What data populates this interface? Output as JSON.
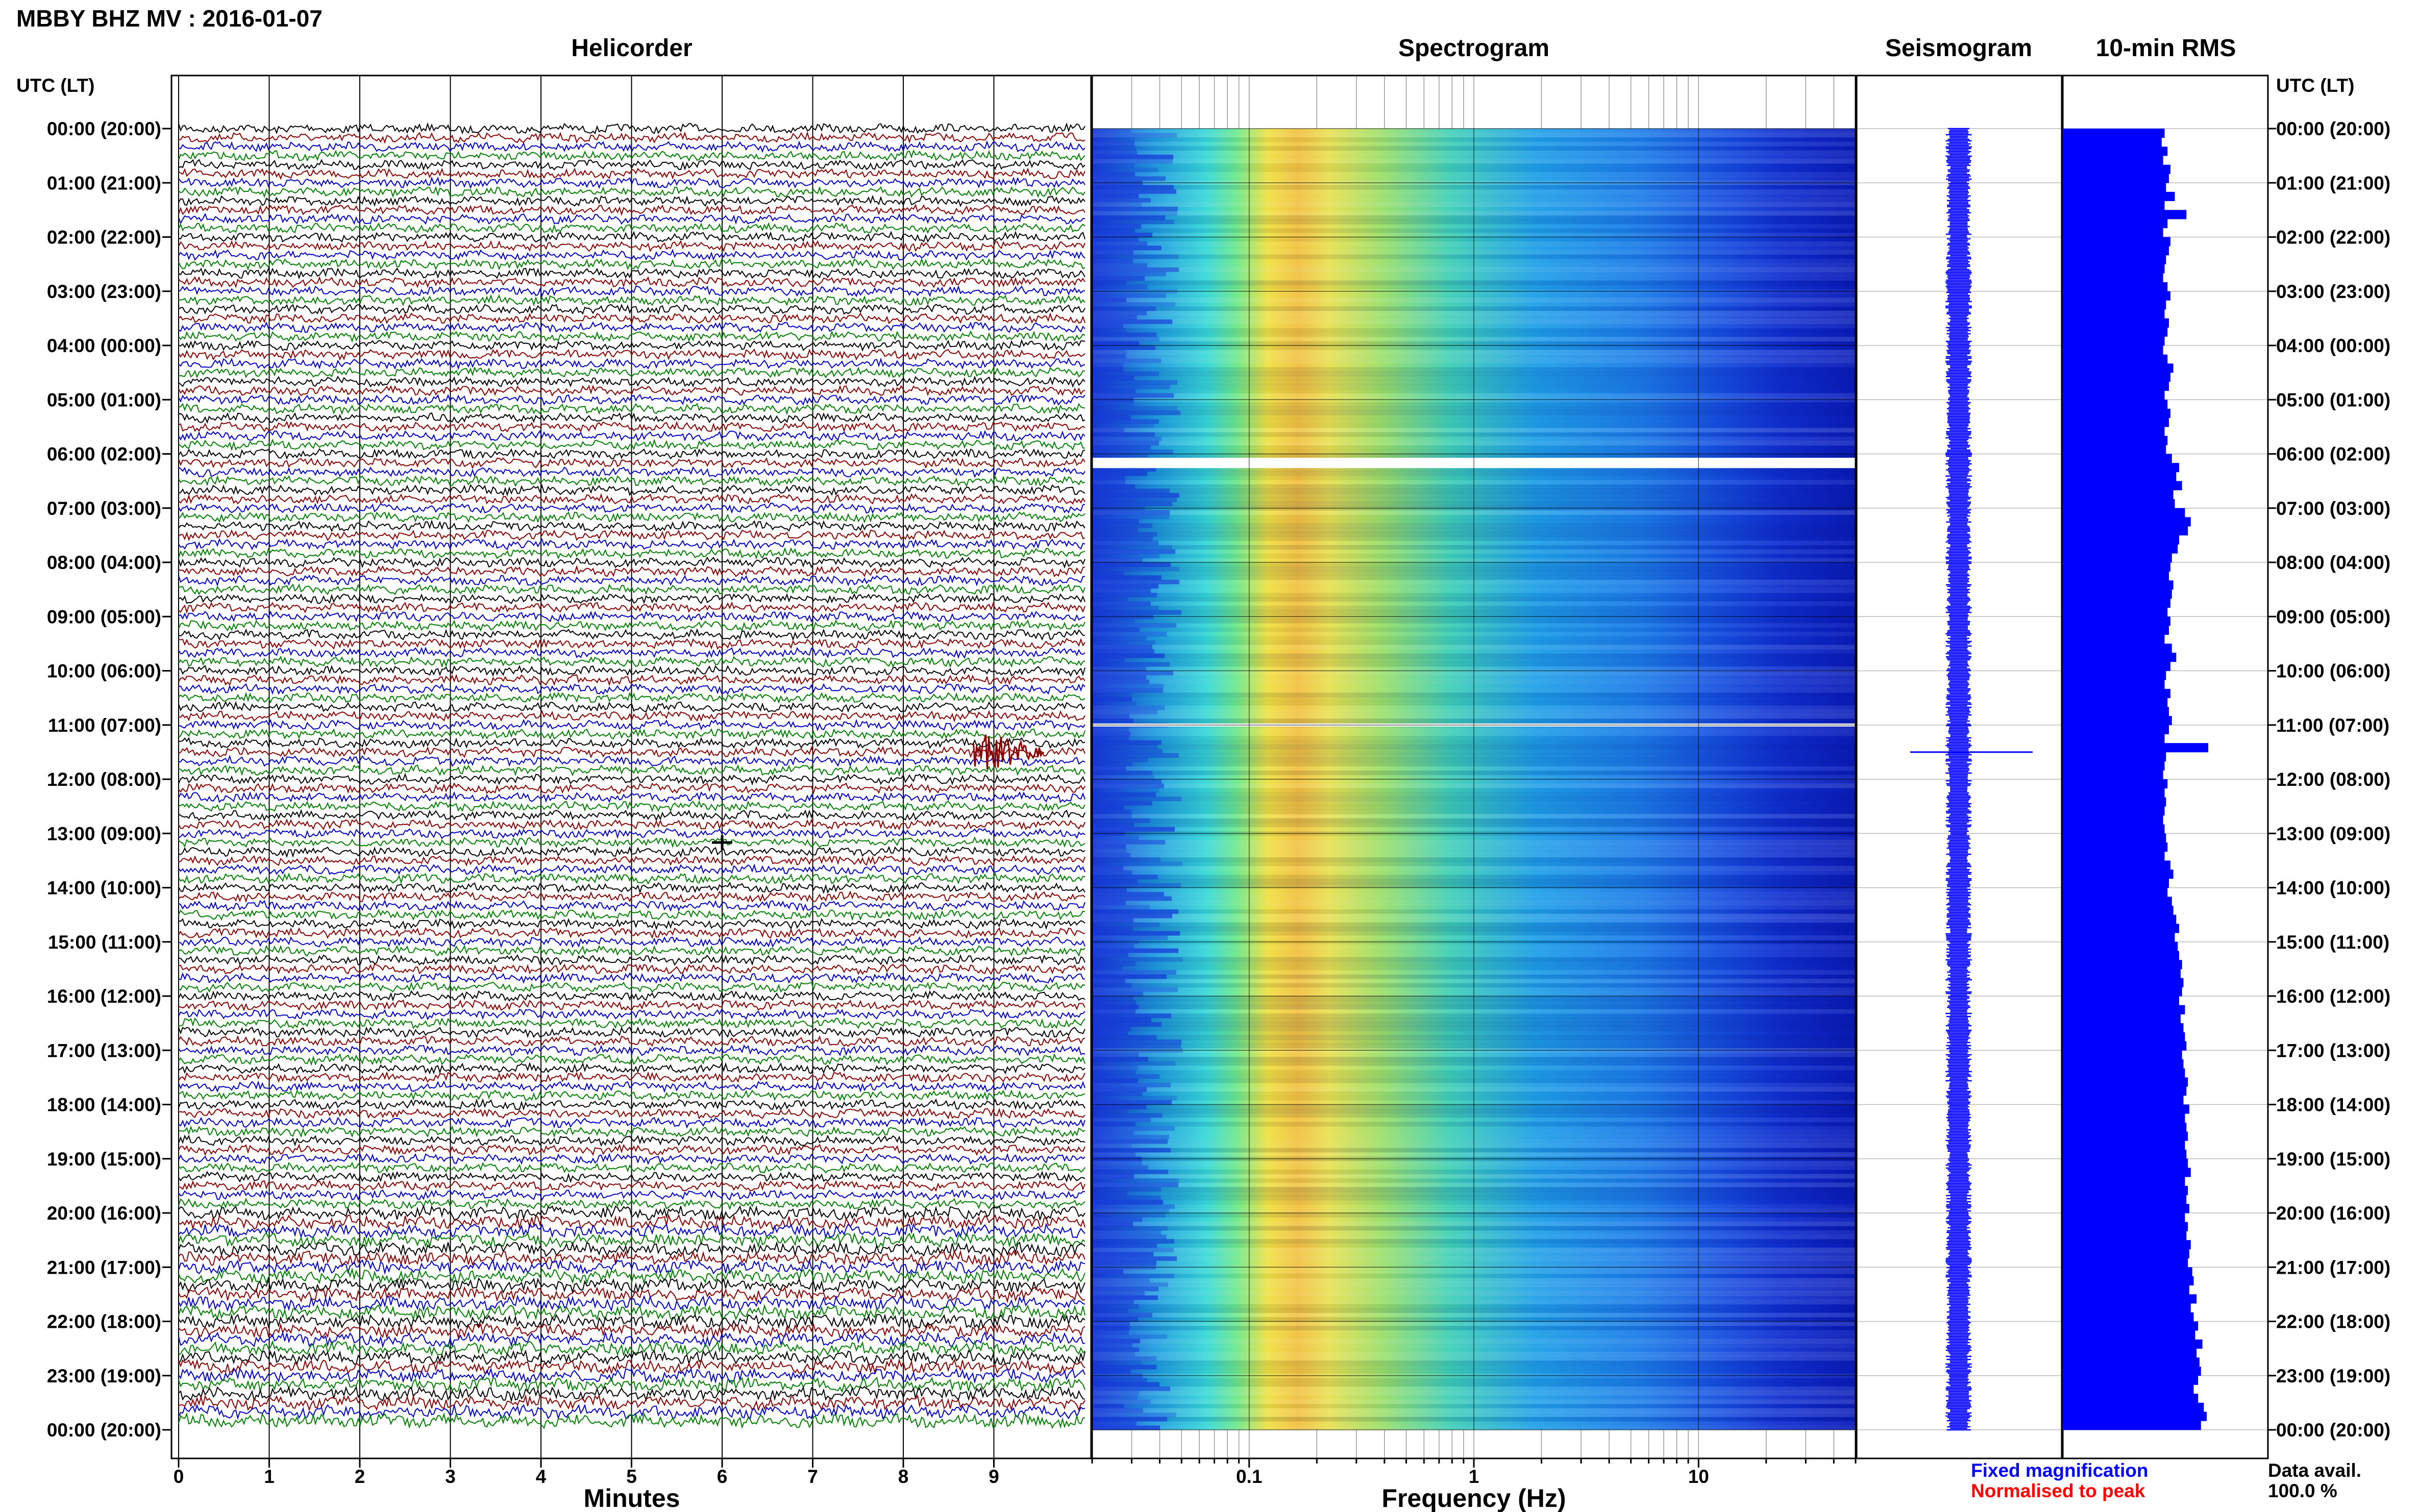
{
  "title": "MBBY BHZ MV : 2016-01-07",
  "panels": {
    "helicorder": "Helicorder",
    "spectrogram": "Spectrogram",
    "seismogram": "Seismogram",
    "rms": "10-min RMS"
  },
  "time_axis_label": "UTC (LT)",
  "time_labels": [
    "00:00 (20:00)",
    "01:00 (21:00)",
    "02:00 (22:00)",
    "03:00 (23:00)",
    "04:00 (00:00)",
    "05:00 (01:00)",
    "06:00 (02:00)",
    "07:00 (03:00)",
    "08:00 (04:00)",
    "09:00 (05:00)",
    "10:00 (06:00)",
    "11:00 (07:00)",
    "12:00 (08:00)",
    "13:00 (09:00)",
    "14:00 (10:00)",
    "15:00 (11:00)",
    "16:00 (12:00)",
    "17:00 (13:00)",
    "18:00 (14:00)",
    "19:00 (15:00)",
    "20:00 (16:00)",
    "21:00 (17:00)",
    "22:00 (18:00)",
    "23:00 (19:00)",
    "00:00 (20:00)"
  ],
  "minutes_axis": {
    "label": "Minutes",
    "ticks": [
      "0",
      "1",
      "2",
      "3",
      "4",
      "5",
      "6",
      "7",
      "8",
      "9"
    ]
  },
  "frequency_axis": {
    "label": "Frequency (Hz)",
    "ticks": [
      "0.1",
      "1",
      "10"
    ]
  },
  "legend": {
    "fixed": "Fixed magnification",
    "normalised": "Normalised to peak"
  },
  "data_avail": {
    "label": "Data avail.",
    "value": "100.0 %"
  },
  "colors": {
    "trace_colors": [
      "#000000",
      "#8b0000",
      "#0000cd",
      "#008000"
    ],
    "rms_bar": "#0000ff",
    "accent_blue": "#0000ff",
    "accent_red": "#ff0000"
  },
  "chart_data": {
    "type": "heatmap",
    "title": "MBBY BHZ MV : 2016-01-07",
    "helicorder": {
      "x_range_minutes": [
        0,
        10
      ],
      "rows": 144,
      "row_minutes": 10,
      "event": {
        "time_utc": "11:30",
        "minute": 9.0
      },
      "event_small": {
        "time_utc": "13:00",
        "minute": 6.0
      }
    },
    "spectrogram": {
      "x_scale": "log",
      "x_range_hz": [
        0.02,
        50
      ],
      "y_range_utc": [
        "00:00",
        "24:00"
      ],
      "data_gaps_utc": [
        "06:10",
        "11:00"
      ]
    },
    "rms_10min": {
      "x": "time_utc_hour",
      "values": [
        0.7,
        0.68,
        0.72,
        0.69,
        0.74,
        0.73,
        0.71,
        0.77,
        0.7,
        0.85,
        0.72,
        0.69,
        0.74,
        0.73,
        0.71,
        0.7,
        0.69,
        0.72,
        0.74,
        0.71,
        0.7,
        0.73,
        0.72,
        0.7,
        0.69,
        0.72,
        0.76,
        0.74,
        0.73,
        0.7,
        0.72,
        0.74,
        0.73,
        0.7,
        0.72,
        0.71,
        0.75,
        0.8,
        0.78,
        0.82,
        0.76,
        0.77,
        0.84,
        0.88,
        0.86,
        0.8,
        0.79,
        0.75,
        0.74,
        0.73,
        0.76,
        0.75,
        0.74,
        0.72,
        0.74,
        0.73,
        0.7,
        0.75,
        0.78,
        0.74,
        0.71,
        0.7,
        0.74,
        0.72,
        0.73,
        0.75,
        0.73,
        0.7,
        1.0,
        0.71,
        0.7,
        0.69,
        0.72,
        0.7,
        0.71,
        0.7,
        0.69,
        0.7,
        0.71,
        0.72,
        0.7,
        0.74,
        0.76,
        0.73,
        0.72,
        0.75,
        0.76,
        0.78,
        0.8,
        0.77,
        0.79,
        0.8,
        0.82,
        0.81,
        0.83,
        0.82,
        0.8,
        0.84,
        0.81,
        0.83,
        0.84,
        0.85,
        0.82,
        0.83,
        0.84,
        0.86,
        0.85,
        0.83,
        0.87,
        0.84,
        0.85,
        0.86,
        0.84,
        0.85,
        0.86,
        0.88,
        0.84,
        0.86,
        0.85,
        0.87,
        0.84,
        0.86,
        0.85,
        0.88,
        0.87,
        0.86,
        0.89,
        0.9,
        0.87,
        0.92,
        0.88,
        0.9,
        0.93,
        0.91,
        0.96,
        0.92,
        0.94,
        0.95,
        0.93,
        0.9,
        0.93,
        0.97,
        0.99,
        0.95
      ]
    }
  }
}
